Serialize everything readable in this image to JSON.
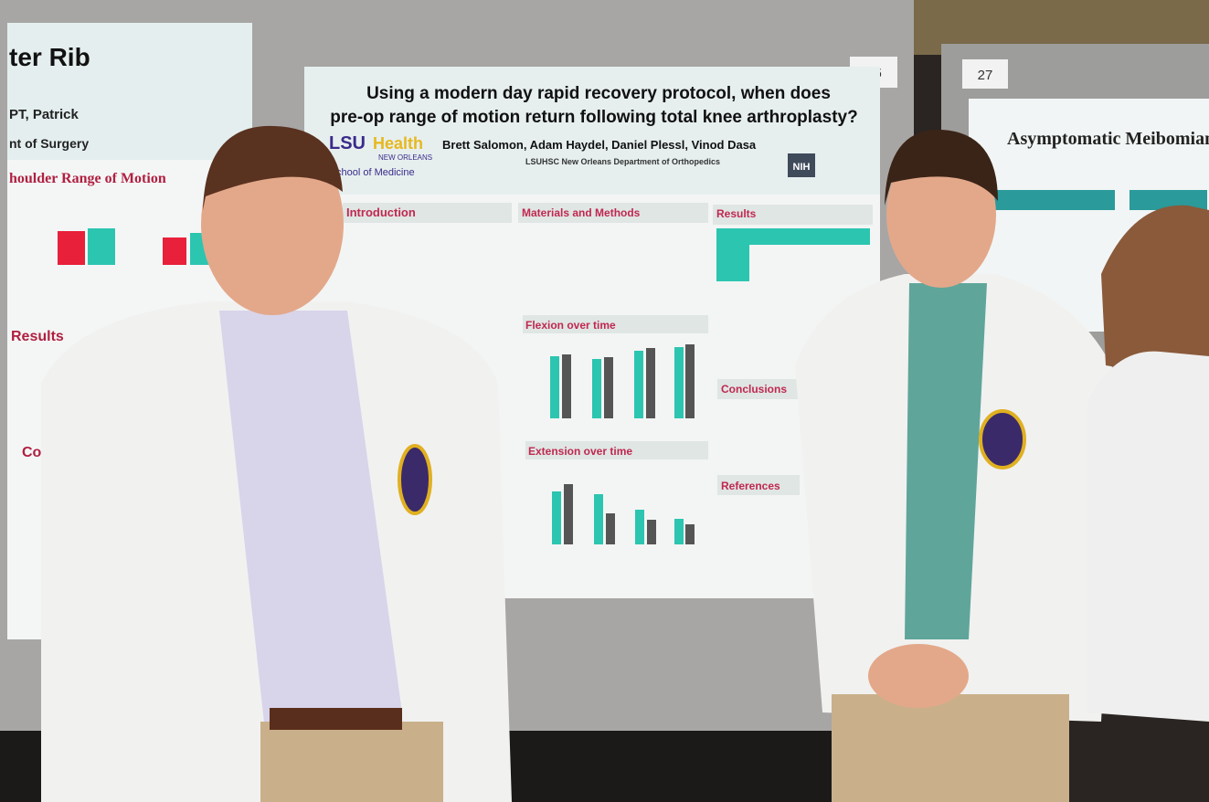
{
  "left_poster": {
    "title": "ter Rib",
    "authors": "PT, Patrick",
    "affiliation": "nt of Surgery",
    "chart_title": "houlder Range of Motion",
    "results": "Results",
    "conclusions": "Conc"
  },
  "main_poster": {
    "number": "26",
    "title_line1": "Using a modern day rapid recovery protocol, when does",
    "title_line2": "pre-op range of motion return following total knee arthroplasty?",
    "logo_lsu": "LSU",
    "logo_health": "Health",
    "logo_city": "NEW ORLEANS",
    "school": "chool of Medicine",
    "authors": "Brett Salomon, Adam Haydel, Daniel Plessl, Vinod Dasa",
    "department": "LSUHSC New Orleans Department of Orthopedics",
    "nih": "NIH",
    "sections": {
      "introduction": "Introduction",
      "methods": "Materials and Methods",
      "results": "Results",
      "flexion": "Flexion over time",
      "extension": "Extension over time",
      "conclusions": "Conclusions",
      "references": "References"
    }
  },
  "right_poster": {
    "number": "27",
    "title": "Asymptomatic Meibomian"
  }
}
